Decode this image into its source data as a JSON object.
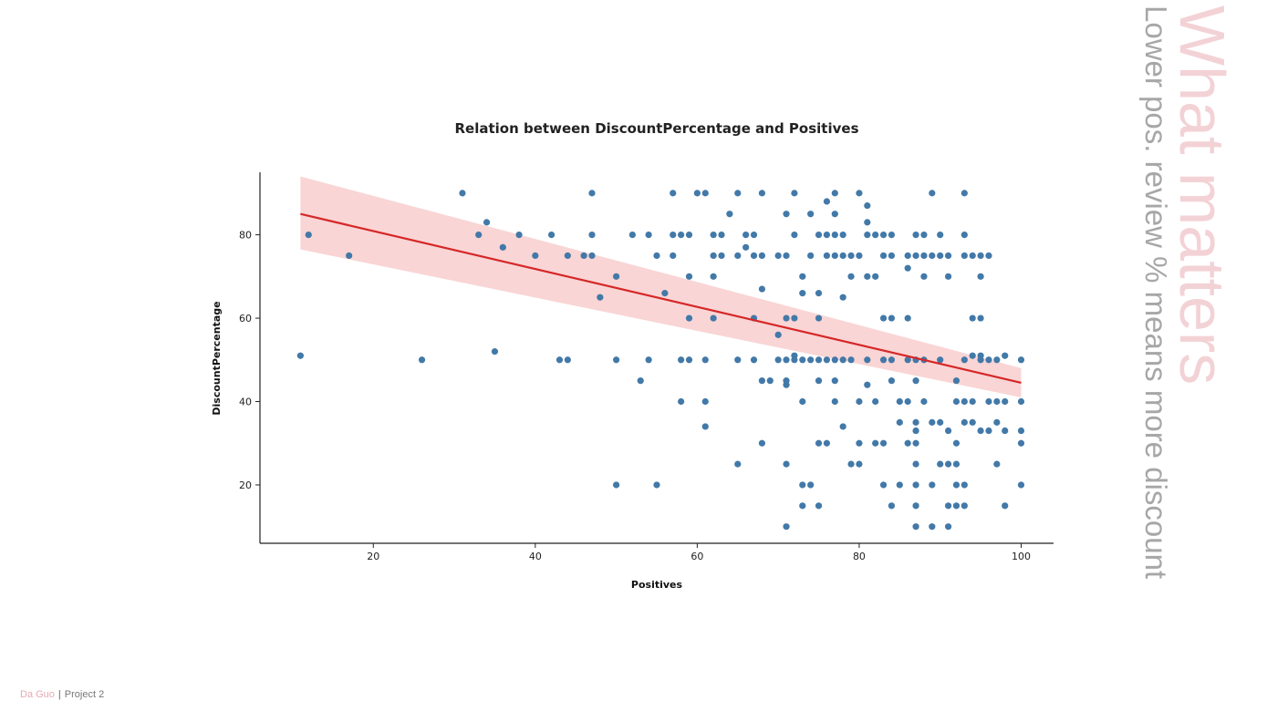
{
  "colors": {
    "points": "#4279A8",
    "regression_line": "#D62728",
    "confidence_band": "#F4B3B3",
    "side_title": "#F3D2D6",
    "side_subtitle": "#A7A7A7"
  },
  "side_banner": {
    "title": "What matters",
    "subtitle": "Lower pos. review % means more discount"
  },
  "footer": {
    "author": "Da Guo",
    "separator": "|",
    "project": "Project 2"
  },
  "chart_data": {
    "type": "scatter",
    "title": "Relation between DiscountPercentage and Positives",
    "xlabel": "Positives",
    "ylabel": "DiscountPercentage",
    "xlim": [
      6,
      104
    ],
    "ylim": [
      6,
      95
    ],
    "xticks": [
      20,
      40,
      60,
      80,
      100
    ],
    "yticks": [
      20,
      40,
      60,
      80
    ],
    "grid": false,
    "regression": {
      "x": [
        11,
        100
      ],
      "y": [
        85,
        44.5
      ],
      "ci_upper": [
        94,
        48
      ],
      "ci_lower": [
        76.5,
        41
      ]
    },
    "points": [
      [
        11,
        51
      ],
      [
        12,
        80
      ],
      [
        17,
        75
      ],
      [
        26,
        50
      ],
      [
        31,
        90
      ],
      [
        33,
        80
      ],
      [
        34,
        83
      ],
      [
        35,
        52
      ],
      [
        36,
        77
      ],
      [
        38,
        80
      ],
      [
        40,
        75
      ],
      [
        42,
        80
      ],
      [
        43,
        50
      ],
      [
        44,
        75
      ],
      [
        44,
        50
      ],
      [
        46,
        75
      ],
      [
        47,
        90
      ],
      [
        47,
        80
      ],
      [
        47,
        75
      ],
      [
        48,
        65
      ],
      [
        50,
        70
      ],
      [
        50,
        50
      ],
      [
        50,
        20
      ],
      [
        52,
        80
      ],
      [
        53,
        45
      ],
      [
        54,
        80
      ],
      [
        54,
        50
      ],
      [
        55,
        75
      ],
      [
        55,
        20
      ],
      [
        56,
        66
      ],
      [
        57,
        90
      ],
      [
        57,
        80
      ],
      [
        57,
        75
      ],
      [
        58,
        80
      ],
      [
        58,
        50
      ],
      [
        58,
        40
      ],
      [
        59,
        80
      ],
      [
        59,
        70
      ],
      [
        59,
        60
      ],
      [
        59,
        50
      ],
      [
        60,
        90
      ],
      [
        61,
        90
      ],
      [
        61,
        50
      ],
      [
        61,
        40
      ],
      [
        61,
        34
      ],
      [
        62,
        80
      ],
      [
        62,
        75
      ],
      [
        62,
        70
      ],
      [
        62,
        60
      ],
      [
        63,
        80
      ],
      [
        63,
        75
      ],
      [
        64,
        85
      ],
      [
        65,
        90
      ],
      [
        65,
        75
      ],
      [
        65,
        50
      ],
      [
        65,
        25
      ],
      [
        66,
        80
      ],
      [
        66,
        77
      ],
      [
        67,
        80
      ],
      [
        67,
        75
      ],
      [
        67,
        60
      ],
      [
        67,
        50
      ],
      [
        68,
        90
      ],
      [
        68,
        75
      ],
      [
        68,
        67
      ],
      [
        68,
        45
      ],
      [
        68,
        30
      ],
      [
        69,
        45
      ],
      [
        70,
        75
      ],
      [
        70,
        56
      ],
      [
        70,
        50
      ],
      [
        71,
        85
      ],
      [
        71,
        75
      ],
      [
        71,
        60
      ],
      [
        71,
        50
      ],
      [
        71,
        45
      ],
      [
        71,
        44
      ],
      [
        71,
        25
      ],
      [
        71,
        10
      ],
      [
        72,
        90
      ],
      [
        72,
        80
      ],
      [
        72,
        60
      ],
      [
        72,
        51
      ],
      [
        72,
        50
      ],
      [
        73,
        70
      ],
      [
        73,
        66
      ],
      [
        73,
        50
      ],
      [
        73,
        40
      ],
      [
        73,
        20
      ],
      [
        73,
        15
      ],
      [
        74,
        85
      ],
      [
        74,
        75
      ],
      [
        74,
        50
      ],
      [
        74,
        20
      ],
      [
        75,
        80
      ],
      [
        75,
        66
      ],
      [
        75,
        60
      ],
      [
        75,
        50
      ],
      [
        75,
        45
      ],
      [
        75,
        30
      ],
      [
        75,
        15
      ],
      [
        76,
        88
      ],
      [
        76,
        80
      ],
      [
        76,
        75
      ],
      [
        76,
        50
      ],
      [
        76,
        30
      ],
      [
        77,
        90
      ],
      [
        77,
        85
      ],
      [
        77,
        80
      ],
      [
        77,
        75
      ],
      [
        77,
        50
      ],
      [
        77,
        45
      ],
      [
        77,
        40
      ],
      [
        78,
        80
      ],
      [
        78,
        75
      ],
      [
        78,
        65
      ],
      [
        78,
        50
      ],
      [
        78,
        34
      ],
      [
        79,
        75
      ],
      [
        79,
        70
      ],
      [
        79,
        50
      ],
      [
        79,
        25
      ],
      [
        80,
        90
      ],
      [
        80,
        75
      ],
      [
        80,
        40
      ],
      [
        80,
        30
      ],
      [
        80,
        25
      ],
      [
        81,
        87
      ],
      [
        81,
        83
      ],
      [
        81,
        80
      ],
      [
        81,
        70
      ],
      [
        81,
        50
      ],
      [
        81,
        44
      ],
      [
        82,
        80
      ],
      [
        82,
        70
      ],
      [
        82,
        40
      ],
      [
        82,
        30
      ],
      [
        83,
        80
      ],
      [
        83,
        75
      ],
      [
        83,
        60
      ],
      [
        83,
        50
      ],
      [
        83,
        30
      ],
      [
        83,
        20
      ],
      [
        84,
        80
      ],
      [
        84,
        75
      ],
      [
        84,
        60
      ],
      [
        84,
        50
      ],
      [
        84,
        45
      ],
      [
        84,
        15
      ],
      [
        85,
        40
      ],
      [
        85,
        35
      ],
      [
        85,
        20
      ],
      [
        86,
        75
      ],
      [
        86,
        72
      ],
      [
        86,
        60
      ],
      [
        86,
        50
      ],
      [
        86,
        40
      ],
      [
        86,
        30
      ],
      [
        87,
        80
      ],
      [
        87,
        75
      ],
      [
        87,
        50
      ],
      [
        87,
        45
      ],
      [
        87,
        35
      ],
      [
        87,
        33
      ],
      [
        87,
        30
      ],
      [
        87,
        25
      ],
      [
        87,
        20
      ],
      [
        87,
        15
      ],
      [
        87,
        10
      ],
      [
        88,
        80
      ],
      [
        88,
        75
      ],
      [
        88,
        70
      ],
      [
        88,
        50
      ],
      [
        88,
        40
      ],
      [
        89,
        90
      ],
      [
        89,
        75
      ],
      [
        89,
        35
      ],
      [
        89,
        20
      ],
      [
        89,
        10
      ],
      [
        90,
        80
      ],
      [
        90,
        75
      ],
      [
        90,
        50
      ],
      [
        90,
        35
      ],
      [
        90,
        25
      ],
      [
        91,
        75
      ],
      [
        91,
        70
      ],
      [
        91,
        33
      ],
      [
        91,
        25
      ],
      [
        91,
        15
      ],
      [
        91,
        10
      ],
      [
        92,
        45
      ],
      [
        92,
        40
      ],
      [
        92,
        30
      ],
      [
        92,
        25
      ],
      [
        92,
        20
      ],
      [
        92,
        15
      ],
      [
        93,
        90
      ],
      [
        93,
        80
      ],
      [
        93,
        75
      ],
      [
        93,
        50
      ],
      [
        93,
        40
      ],
      [
        93,
        35
      ],
      [
        93,
        20
      ],
      [
        93,
        15
      ],
      [
        94,
        75
      ],
      [
        94,
        60
      ],
      [
        94,
        51
      ],
      [
        94,
        40
      ],
      [
        94,
        35
      ],
      [
        95,
        75
      ],
      [
        95,
        70
      ],
      [
        95,
        60
      ],
      [
        95,
        51
      ],
      [
        95,
        50
      ],
      [
        95,
        33
      ],
      [
        96,
        75
      ],
      [
        96,
        50
      ],
      [
        96,
        33
      ],
      [
        96,
        40
      ],
      [
        97,
        50
      ],
      [
        97,
        40
      ],
      [
        97,
        35
      ],
      [
        97,
        25
      ],
      [
        98,
        51
      ],
      [
        98,
        40
      ],
      [
        98,
        33
      ],
      [
        98,
        15
      ],
      [
        100,
        50
      ],
      [
        100,
        40
      ],
      [
        100,
        33
      ],
      [
        100,
        30
      ],
      [
        100,
        20
      ]
    ]
  }
}
